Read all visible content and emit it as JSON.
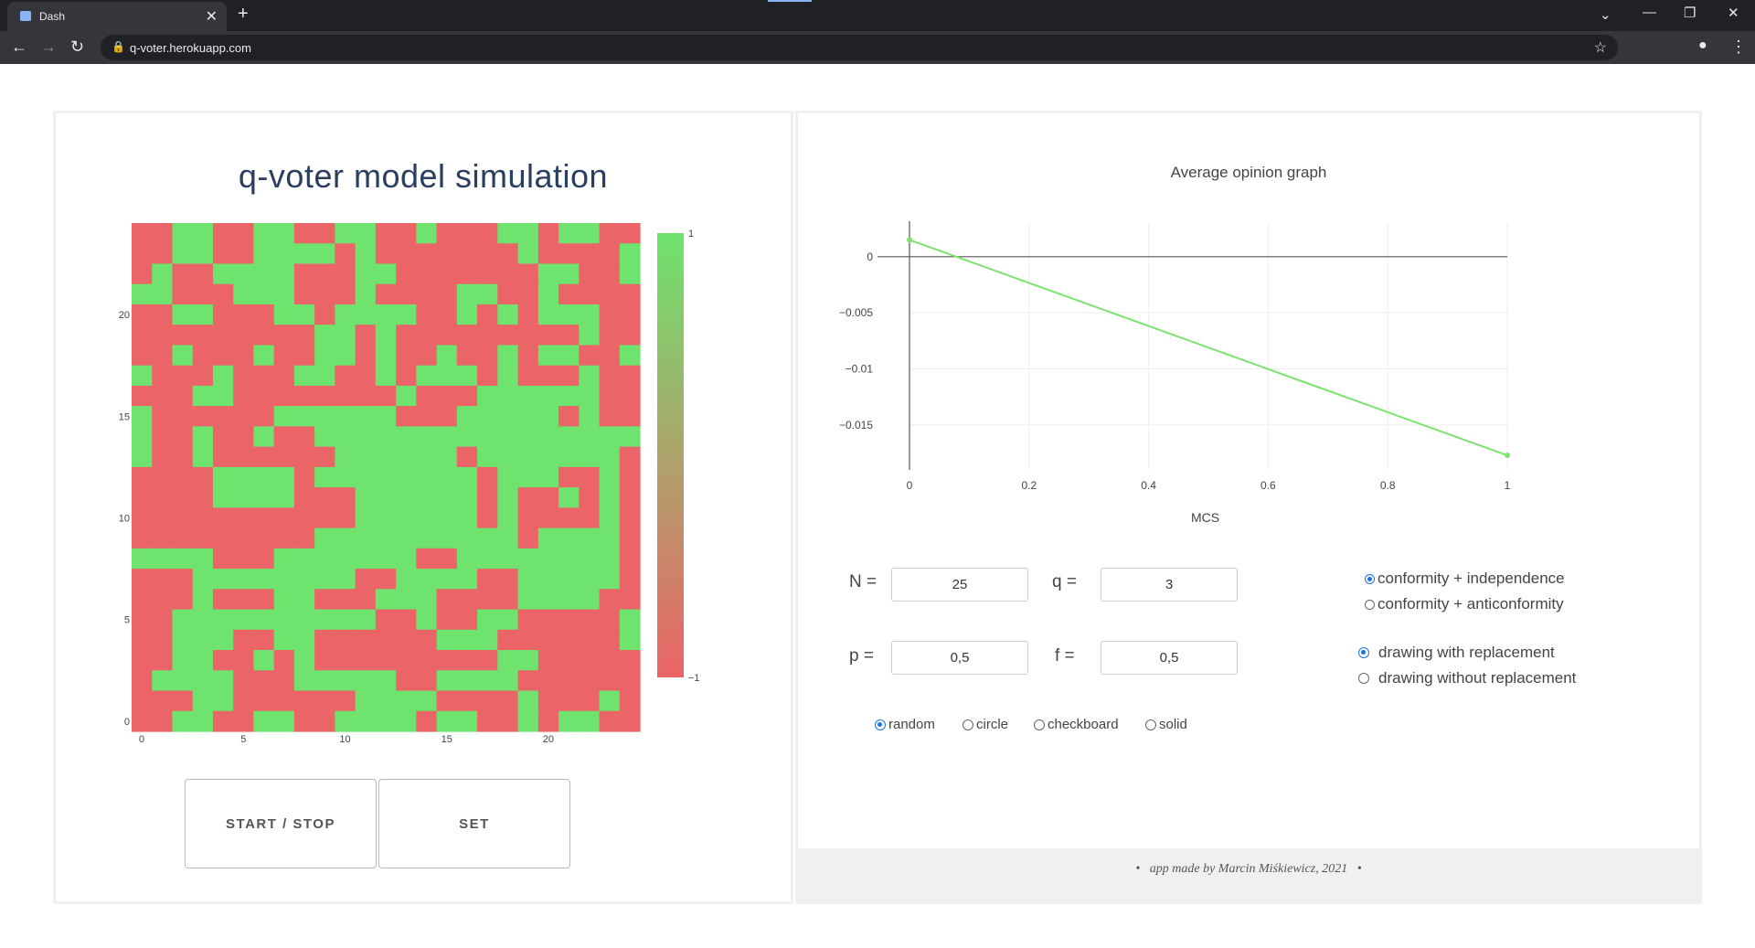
{
  "browser": {
    "tab_title": "Dash",
    "url": "q-voter.herokuapp.com"
  },
  "app": {
    "title": "q-voter model simulation",
    "start_stop_label": "START / STOP",
    "set_label": "SET"
  },
  "colors": {
    "green": "#6ee36e",
    "red": "#eb6467",
    "line": "#7de36f"
  },
  "heatmap": {
    "size": 25,
    "x_ticks": [
      "0",
      "5",
      "10",
      "15",
      "20"
    ],
    "y_ticks": [
      "0",
      "5",
      "10",
      "15",
      "20"
    ],
    "colorbar_max": "1",
    "colorbar_min": "−1",
    "grid": [
      "RRGGRRGGRRGGRRGRRRGGRGGRR",
      "RRGGRRGGGGRGRRRRRRRGRRRRG",
      "RGRRGGGGRRRGGRRRRRRRGGRRG",
      "GGRRRGGGRRRGRRRRGGRRGRRRR",
      "RRGGRRRGGRGGGGRRGRGRGGGRR",
      "RRRRRRRRRGGRGRRRRRRRRRGRR",
      "RRGRRRGRRGGRGRRGRRGRGGRRG",
      "GRRRGRRRGGRRGRGGGRGRRRGRR",
      "RRRGGRRRRRRRRGRRRGGGGGGRR",
      "GRRRRRRGGGGGGRRRGGGGGRGRR",
      "GRRGRRGRRGGGGGGGGGGGGGGGG",
      "GRRGRRRRRRGGGGGGRGGGGGGGR",
      "RRRRGGGGRGGGGGGGGRGGGRRGR",
      "RRRRGGGGRRRGGGGGGRGRRGRGR",
      "RRRRRRRRRRRGGGGGGRGRRRRGR",
      "RRRRRRRRRGGGGGGGGGGRGGGGR",
      "GGGGRRRGGGGGGGRRGGGGGGGGR",
      "RRRGGGGGGGGRRGGGGRRGGGGGR",
      "RRRGRRRGGRRRGGGRRRRGGGGRR",
      "RRGGGGGGGGGGRRGRRGGRRRRRG",
      "RRGGGRRGGRRRRRRGGGRRRRRRG",
      "RRGGRRGRGRRRRRRRRRGGRRRRR",
      "RGGGGRRRGGGGGRRGGGGRRRRRR",
      "RRRGGRRRRRRGGGGRRRRGRRRGR",
      "RRGGRRGGRRGGGGRGGRRGRGGRR"
    ]
  },
  "graph": {
    "title": "Average opinion graph",
    "xlabel": "MCS"
  },
  "chart_data": {
    "type": "line",
    "title": "Average opinion graph",
    "xlabel": "MCS",
    "ylabel": "",
    "x": [
      0,
      1
    ],
    "y": [
      0.0015,
      -0.0177
    ],
    "xlim": [
      0,
      1
    ],
    "ylim": [
      -0.019,
      0.003
    ],
    "x_ticks": [
      "0",
      "0.2",
      "0.4",
      "0.6",
      "0.8",
      "1"
    ],
    "y_ticks": [
      "0",
      "−0.005",
      "−0.01",
      "−0.015"
    ],
    "grid": true
  },
  "form": {
    "n_label": "N =",
    "n_value": "25",
    "q_label": "q =",
    "q_value": "3",
    "p_label": "p =",
    "p_value": "0,5",
    "f_label": "f =",
    "f_value": "0,5",
    "model_options": [
      "conformity + independence",
      "conformity + anticonformity"
    ],
    "model_selected": "conformity + independence",
    "drawing_options": [
      "drawing with replacement",
      "drawing without replacement"
    ],
    "drawing_selected": "drawing with replacement",
    "shape_options": [
      "random",
      "circle",
      "checkboard",
      "solid"
    ],
    "shape_selected": "random"
  },
  "footer": {
    "bullet": "•",
    "credit": "app made by Marcin Miśkiewicz, 2021"
  }
}
